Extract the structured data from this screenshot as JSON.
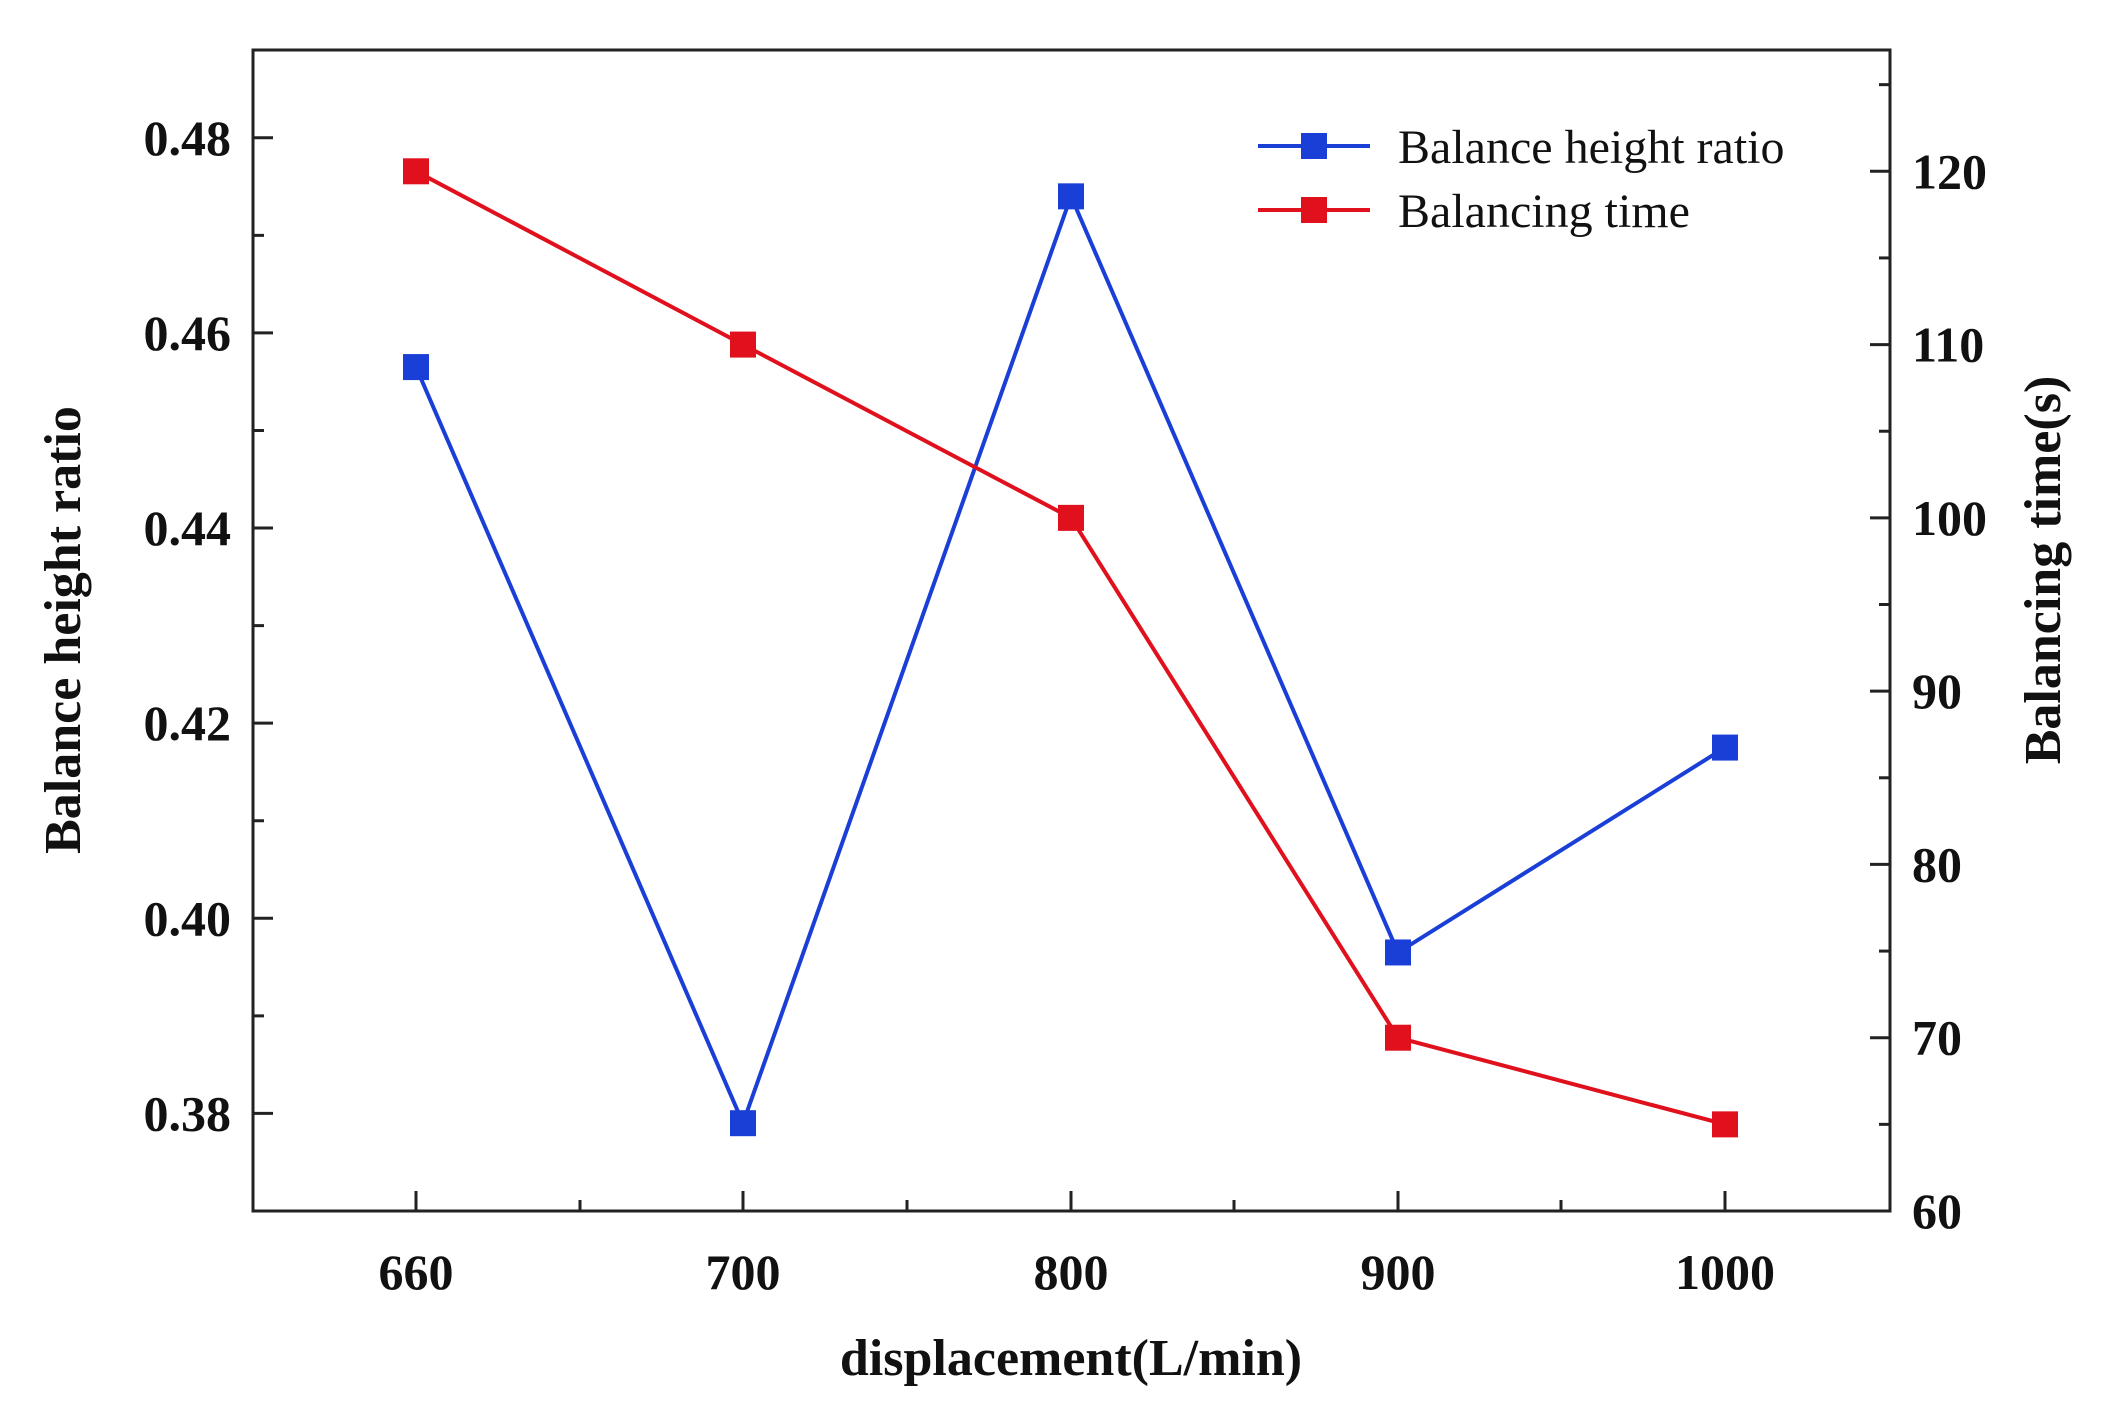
{
  "chart_data": {
    "type": "line",
    "title": "",
    "xlabel": "displacement(L/min)",
    "ylabel_left": "Balance height ratio",
    "ylabel_right": "Balancing time(s)",
    "categories": [
      "660",
      "700",
      "800",
      "900",
      "1000"
    ],
    "y_left": {
      "lim": [
        0.37,
        0.489
      ],
      "ticks": [
        0.38,
        0.4,
        0.42,
        0.44,
        0.46,
        0.48
      ],
      "tick_labels": [
        "0.38",
        "0.40",
        "0.42",
        "0.44",
        "0.46",
        "0.48"
      ]
    },
    "y_right": {
      "lim": [
        60,
        127
      ],
      "ticks": [
        60,
        70,
        80,
        90,
        100,
        110,
        120
      ],
      "tick_labels": [
        "60",
        "70",
        "80",
        "90",
        "100",
        "110",
        "120"
      ]
    },
    "grid": false,
    "legend_position": "top-right",
    "series": [
      {
        "name": "Balance height ratio",
        "axis": "left",
        "color": "#1a3fd6",
        "marker": "square",
        "values": [
          0.4565,
          0.379,
          0.474,
          0.3965,
          0.4175
        ]
      },
      {
        "name": "Balancing time",
        "axis": "right",
        "color": "#e0101c",
        "marker": "square",
        "values": [
          120,
          110,
          100,
          70,
          65
        ]
      }
    ]
  }
}
